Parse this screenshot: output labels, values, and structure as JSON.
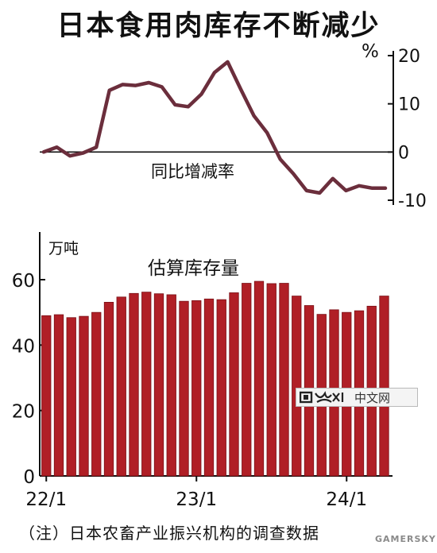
{
  "title": "日本食用肉库存不断减少",
  "note": "（注）日本农畜产业振兴机构的调查数据",
  "colors": {
    "line": "#6b2e3c",
    "bar": "#b01f26",
    "bar_edge": "#7a1016",
    "axis": "#111111"
  },
  "watermark": {
    "label": "中文网"
  },
  "credit": "GAMERSKY",
  "chart_data": [
    {
      "type": "line",
      "title": "",
      "series_label": "同比增减率",
      "unit": "%",
      "y_axis_side": "right",
      "ylim": [
        -10,
        20
      ],
      "yticks": [
        20,
        10,
        0,
        -10
      ],
      "tick_labels": [
        "20",
        "10",
        "0",
        "-10"
      ],
      "grid": false,
      "baseline": 0,
      "series": [
        {
          "values": [
            0.0,
            1.0,
            -0.8,
            -0.2,
            1.0,
            12.8,
            14.0,
            13.8,
            14.4,
            13.5,
            9.8,
            9.4,
            12.0,
            16.5,
            18.7,
            13.0,
            7.5,
            4.0,
            -1.5,
            -4.5,
            -8.0,
            -8.5,
            -5.5,
            -8.0,
            -7.0,
            -7.5,
            -7.5
          ]
        }
      ]
    },
    {
      "type": "bar",
      "title": "估算库存量",
      "unit": "万吨",
      "ylim": [
        0,
        60
      ],
      "yticks": [
        0,
        20,
        40,
        60
      ],
      "tick_labels": [
        "0",
        "20",
        "40",
        "60"
      ],
      "grid": false,
      "x_tick_labels": [
        {
          "label": "22/1",
          "index": 0
        },
        {
          "label": "23/1",
          "index": 12
        },
        {
          "label": "24/1",
          "index": 24
        }
      ],
      "values": [
        49.0,
        49.3,
        48.4,
        48.8,
        50.0,
        53.1,
        54.7,
        55.8,
        56.2,
        55.7,
        55.4,
        53.4,
        53.6,
        54.1,
        53.9,
        56.0,
        58.9,
        59.5,
        58.8,
        58.9,
        55.0,
        52.1,
        49.4,
        50.8,
        50.0,
        50.5,
        51.9,
        55.0
      ]
    }
  ]
}
